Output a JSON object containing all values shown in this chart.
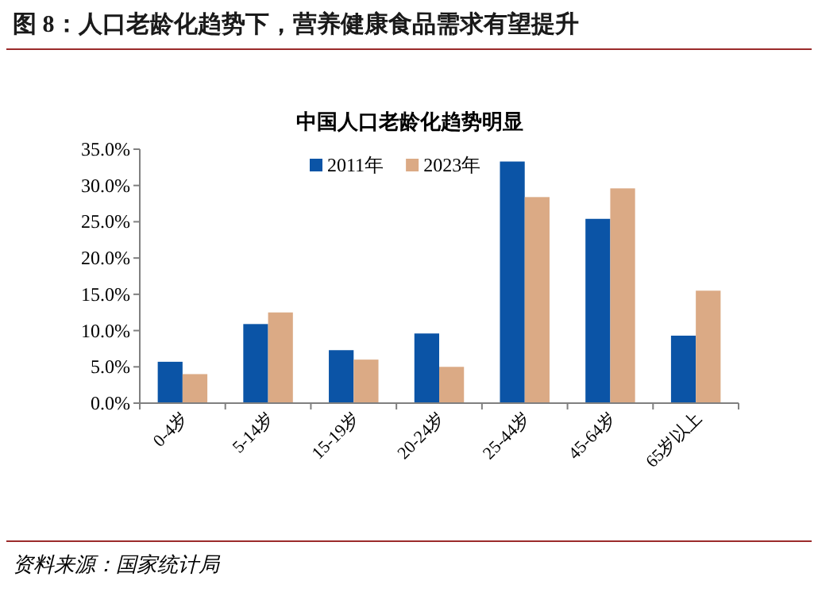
{
  "chart_data": {
    "type": "bar",
    "title": "图 8：人口老龄化趋势下，营养健康食品需求有望提升",
    "subtitle": "中国人口老龄化趋势明显",
    "categories": [
      "0-4岁",
      "5-14岁",
      "15-19岁",
      "20-24岁",
      "25-44岁",
      "45-64岁",
      "65岁以上"
    ],
    "series": [
      {
        "name": "2011年",
        "color": "#0b54a6",
        "values": [
          5.7,
          10.9,
          7.3,
          9.6,
          33.3,
          25.4,
          9.3
        ]
      },
      {
        "name": "2023年",
        "color": "#dbaa85",
        "values": [
          4.0,
          12.5,
          6.0,
          5.0,
          28.4,
          29.6,
          15.5
        ]
      }
    ],
    "ylim": [
      0,
      35
    ],
    "yticks": [
      {
        "value": 0,
        "label": "0.0%"
      },
      {
        "value": 5,
        "label": "5.0%"
      },
      {
        "value": 10,
        "label": "10.0%"
      },
      {
        "value": 15,
        "label": "15.0%"
      },
      {
        "value": 20,
        "label": "20.0%"
      },
      {
        "value": 25,
        "label": "25.0%"
      },
      {
        "value": 30,
        "label": "30.0%"
      },
      {
        "value": 35,
        "label": "35.0%"
      }
    ],
    "grid": false,
    "legend": "top",
    "annotations": [
      "资料来源：国家统计局"
    ]
  }
}
